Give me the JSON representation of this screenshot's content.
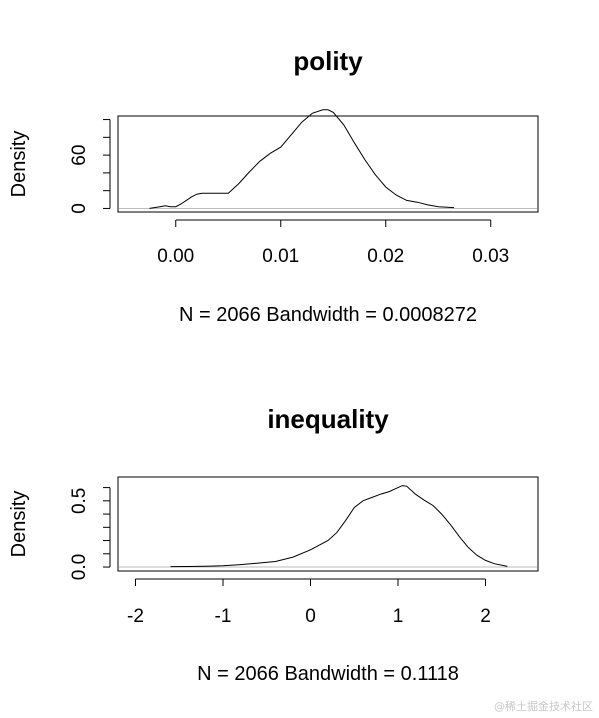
{
  "chart_data": [
    {
      "type": "area",
      "title": "polity",
      "ylabel": "Density",
      "xlabel": "N = 2066   Bandwidth = 0.0008272",
      "xlim": [
        -0.0055,
        0.0345
      ],
      "ylim": [
        -4,
        104
      ],
      "x_ticks": [
        0.0,
        0.01,
        0.02,
        0.03
      ],
      "x_tick_labels": [
        "0.00",
        "0.01",
        "0.02",
        "0.03"
      ],
      "y_ticks": [
        0,
        20,
        40,
        60,
        80,
        100
      ],
      "y_tick_labels": [
        "0",
        "",
        "",
        "60",
        "",
        ""
      ],
      "series": [
        {
          "x": [
            -0.0025,
            -0.0015,
            -0.001,
            -0.0005,
            0.0,
            0.0005,
            0.001,
            0.0015,
            0.002,
            0.0025,
            0.003,
            0.004,
            0.005,
            0.006,
            0.007,
            0.008,
            0.009,
            0.01,
            0.011,
            0.012,
            0.013,
            0.014,
            0.0145,
            0.015,
            0.016,
            0.017,
            0.018,
            0.019,
            0.02,
            0.021,
            0.022,
            0.023,
            0.024,
            0.025,
            0.0265
          ],
          "y": [
            0,
            2,
            3,
            2,
            2,
            5,
            9,
            13,
            16,
            17,
            17,
            17,
            17,
            28,
            41,
            53,
            62,
            69,
            83,
            97,
            107,
            111,
            111,
            108,
            94,
            74,
            55,
            38,
            24,
            15,
            9,
            7,
            4,
            2,
            1
          ]
        }
      ]
    },
    {
      "type": "area",
      "title": "inequality",
      "ylabel": "Density",
      "xlabel": "N = 2066   Bandwidth = 0.1118",
      "xlim": [
        -2.2,
        2.6
      ],
      "ylim": [
        -0.03,
        0.68
      ],
      "x_ticks": [
        -2,
        -1,
        0,
        1,
        2
      ],
      "x_tick_labels": [
        "-2",
        "-1",
        "0",
        "1",
        "2"
      ],
      "y_ticks": [
        0.0,
        0.1,
        0.2,
        0.3,
        0.4,
        0.5,
        0.6
      ],
      "y_tick_labels": [
        "0.0",
        "",
        "",
        "",
        "",
        "0.5",
        ""
      ],
      "series": [
        {
          "x": [
            -1.6,
            -1.4,
            -1.2,
            -1.0,
            -0.8,
            -0.6,
            -0.4,
            -0.2,
            0.0,
            0.2,
            0.3,
            0.4,
            0.5,
            0.6,
            0.7,
            0.8,
            0.9,
            1.0,
            1.05,
            1.1,
            1.2,
            1.3,
            1.4,
            1.5,
            1.6,
            1.7,
            1.8,
            1.9,
            2.0,
            2.1,
            2.25
          ],
          "y": [
            0.003,
            0.004,
            0.006,
            0.009,
            0.018,
            0.03,
            0.042,
            0.075,
            0.13,
            0.2,
            0.26,
            0.35,
            0.45,
            0.5,
            0.525,
            0.55,
            0.57,
            0.6,
            0.615,
            0.61,
            0.55,
            0.505,
            0.465,
            0.4,
            0.32,
            0.23,
            0.15,
            0.09,
            0.05,
            0.025,
            0.005
          ]
        }
      ]
    }
  ],
  "colors": {
    "line": "#000000",
    "zero_line": "#bebebe",
    "text": "#000000"
  },
  "watermark": "@稀土掘金技术社区"
}
